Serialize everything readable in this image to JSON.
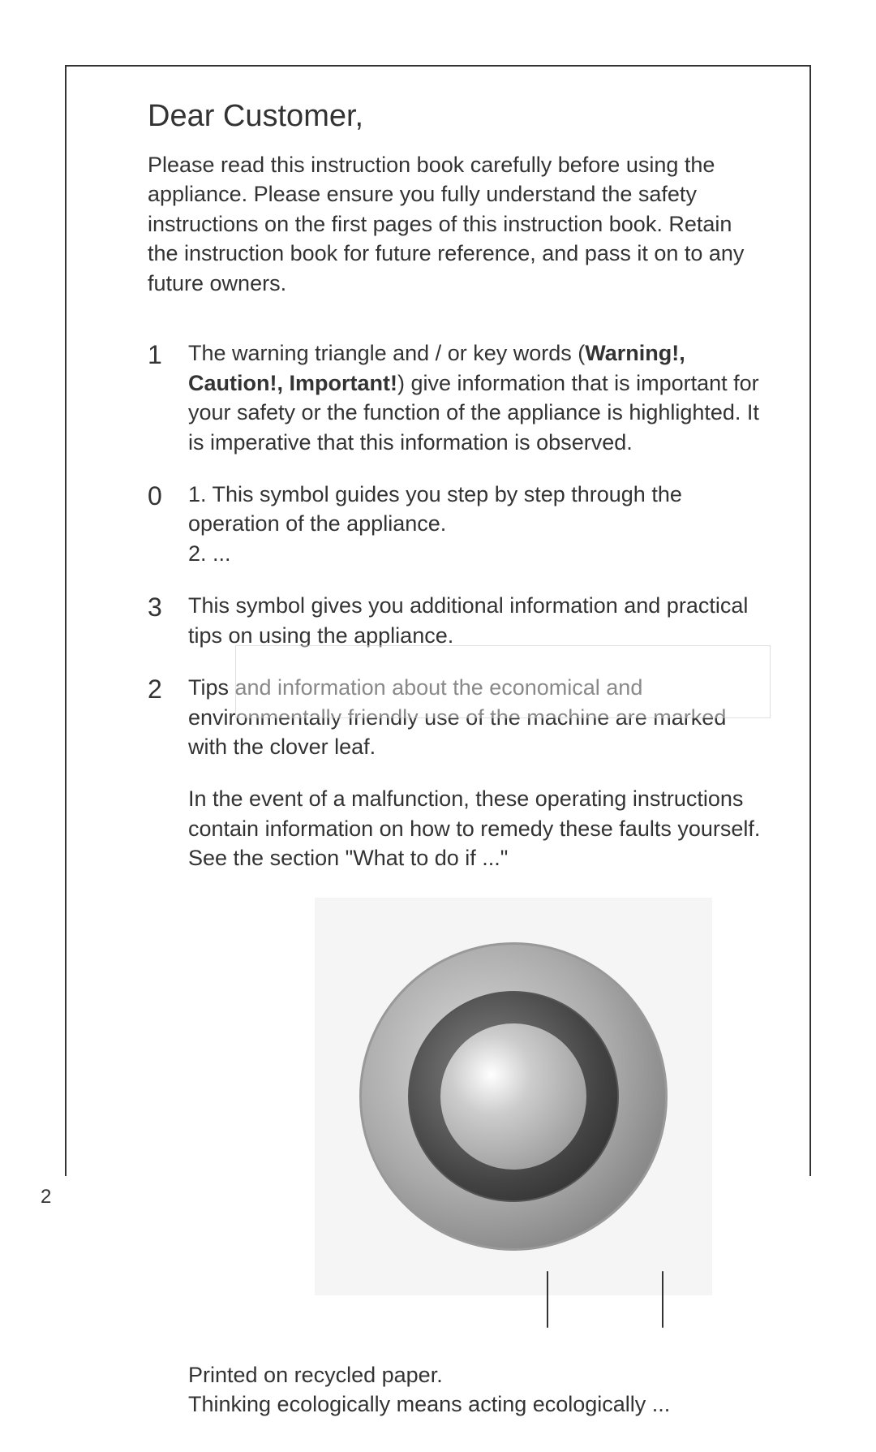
{
  "title": "Dear Customer,",
  "intro": "Please read this instruction book carefully before using the appliance. Please ensure you fully understand the safety instructions on the first pages of this instruction book.\nRetain the instruction book for future reference, and pass it on to any future owners.",
  "sections": [
    {
      "symbol": "1",
      "text_pre": "The warning triangle and / or key words (",
      "text_bold": "Warning!, Caution!, Important!",
      "text_post": ") give information that is important for your safety or the function of the appliance is highlighted. It is imperative that this information is observed."
    },
    {
      "symbol": "0",
      "items": [
        "1. This symbol guides you step by step through the operation of the appliance.",
        "2. ..."
      ]
    },
    {
      "symbol": "3",
      "text": "This symbol gives you additional information and practical tips on using the appliance."
    },
    {
      "symbol": "2",
      "text": "Tips and information about the economical and environmentally friendly use of the machine are marked with the clover leaf."
    }
  ],
  "malfunction": "In the event of a malfunction, these operating instructions contain information on how to remedy these faults yourself. See the section \"What to do if ...\"",
  "footer_line1": "Printed on recycled paper.",
  "footer_line2": "Thinking ecologically means acting ecologically ...",
  "page_number": "2",
  "colors": {
    "text": "#333333",
    "background": "#ffffff",
    "border": "#333333"
  },
  "typography": {
    "title_fontsize": 38,
    "body_fontsize": 27,
    "symbol_fontsize": 32,
    "page_number_fontsize": 24,
    "font_family": "Arial, Helvetica, sans-serif"
  }
}
